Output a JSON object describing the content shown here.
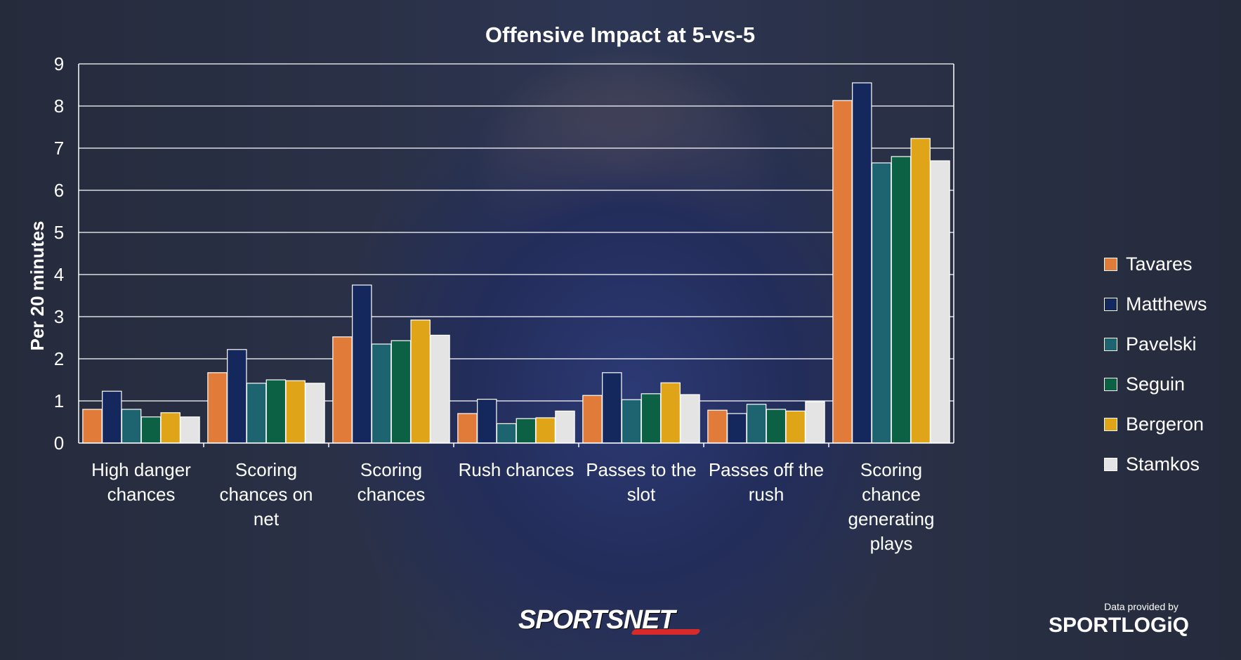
{
  "chart_data": {
    "type": "bar",
    "title": "Offensive Impact at 5-vs-5",
    "ylabel": "Per 20 minutes",
    "xlabel": "",
    "ylim": [
      0,
      9
    ],
    "yticks": [
      "0",
      "1",
      "2",
      "3",
      "4",
      "5",
      "6",
      "7",
      "8",
      "9"
    ],
    "grid": true,
    "legend_position": "right",
    "categories": [
      [
        "High danger",
        "chances"
      ],
      [
        "Scoring",
        "chances on",
        "net"
      ],
      [
        "Scoring",
        "chances"
      ],
      [
        "Rush chances"
      ],
      [
        "Passes to the",
        "slot"
      ],
      [
        "Passes off the",
        "rush"
      ],
      [
        "Scoring",
        "chance",
        "generating",
        "plays"
      ]
    ],
    "series": [
      {
        "name": "Tavares",
        "color": "#e07b39",
        "values": [
          0.8,
          1.67,
          2.52,
          0.7,
          1.13,
          0.78,
          8.13
        ]
      },
      {
        "name": "Matthews",
        "color": "#14285e",
        "values": [
          1.23,
          2.22,
          3.75,
          1.04,
          1.67,
          0.7,
          8.55
        ]
      },
      {
        "name": "Pavelski",
        "color": "#1d6470",
        "values": [
          0.8,
          1.42,
          2.35,
          0.46,
          1.03,
          0.92,
          6.65
        ]
      },
      {
        "name": "Seguin",
        "color": "#0c6145",
        "values": [
          0.62,
          1.5,
          2.43,
          0.58,
          1.17,
          0.8,
          6.8
        ]
      },
      {
        "name": "Bergeron",
        "color": "#e0a419",
        "values": [
          0.72,
          1.48,
          2.92,
          0.6,
          1.43,
          0.76,
          7.23
        ]
      },
      {
        "name": "Stamkos",
        "color": "#e4e4e4",
        "values": [
          0.62,
          1.42,
          2.56,
          0.76,
          1.15,
          0.98,
          6.7
        ]
      }
    ]
  },
  "logos": {
    "sportsnet": "SPORTSNET",
    "credit": "Data provided by",
    "sportlogiq": "SPORTLOGiQ"
  }
}
